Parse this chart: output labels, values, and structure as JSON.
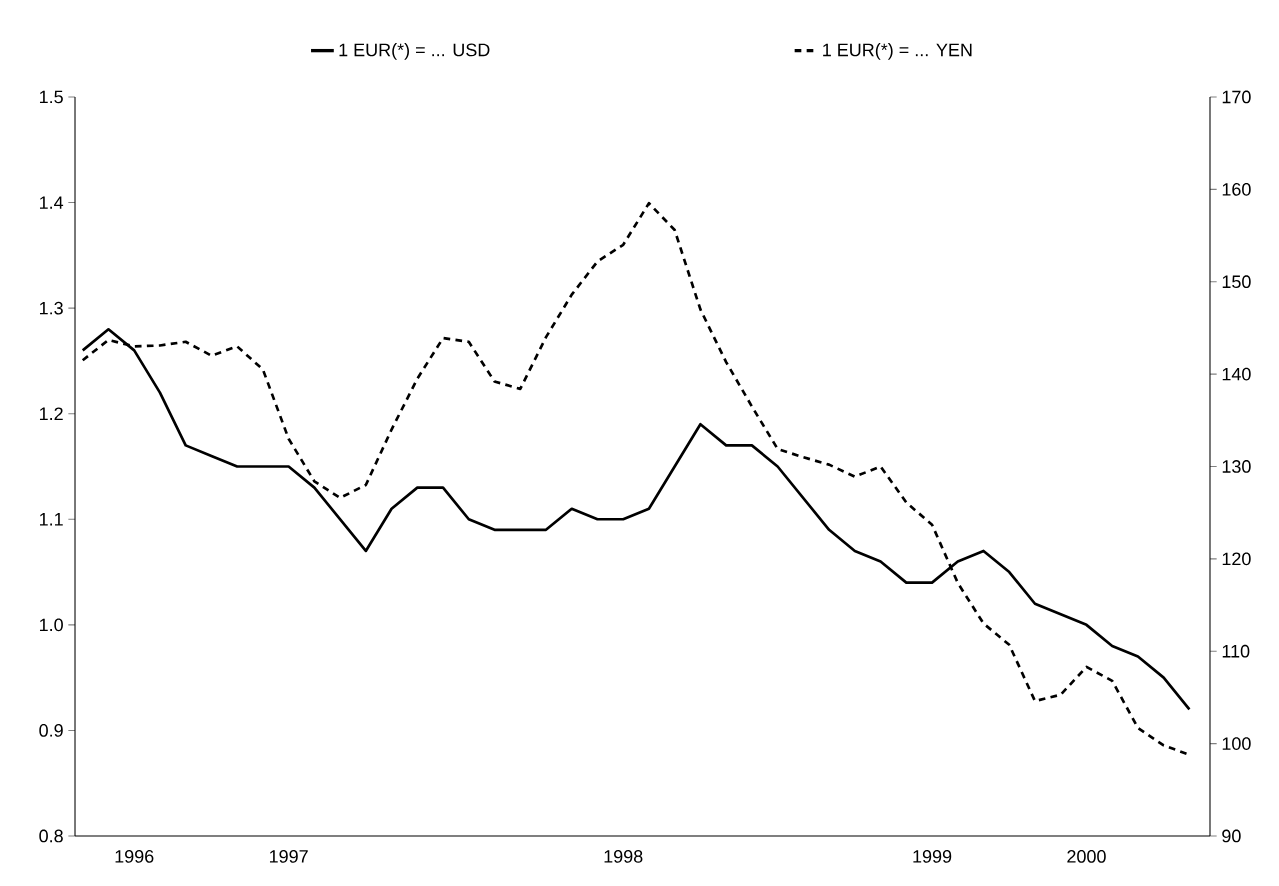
{
  "chart_data": {
    "type": "line",
    "categories": [
      null,
      null,
      "1996",
      null,
      null,
      null,
      null,
      null,
      "1997",
      null,
      null,
      null,
      null,
      null,
      null,
      null,
      null,
      null,
      null,
      null,
      null,
      "1998",
      null,
      null,
      null,
      null,
      null,
      null,
      null,
      null,
      null,
      null,
      null,
      "1999",
      null,
      null,
      null,
      null,
      null,
      "2000",
      null,
      null,
      null,
      null
    ],
    "ylim": [
      0.8,
      1.5
    ],
    "y2lim": [
      90,
      170
    ],
    "yticks": [
      {
        "value": 0.8,
        "label": "0.8"
      },
      {
        "value": 0.9,
        "label": "0.9"
      },
      {
        "value": 1.0,
        "label": "1.0"
      },
      {
        "value": 1.1,
        "label": "1.1"
      },
      {
        "value": 1.2,
        "label": "1.2"
      },
      {
        "value": 1.3,
        "label": "1.3"
      },
      {
        "value": 1.4,
        "label": "1.4"
      },
      {
        "value": 1.5,
        "label": "1.5"
      }
    ],
    "y2ticks": [
      90,
      100,
      110,
      120,
      130,
      140,
      150,
      160,
      170
    ],
    "legend": "top",
    "series": [
      {
        "name": "1 EUR(*) = ... USD",
        "color": "#000000",
        "line_style": "solid",
        "axis": "y",
        "values": [
          1.26,
          1.28,
          1.26,
          1.22,
          1.17,
          1.16,
          1.15,
          1.15,
          1.15,
          1.13,
          1.1,
          1.07,
          1.11,
          1.13,
          1.13,
          1.1,
          1.09,
          1.09,
          1.09,
          1.11,
          1.1,
          1.1,
          1.11,
          1.15,
          1.19,
          1.17,
          1.17,
          1.15,
          1.12,
          1.09,
          1.07,
          1.06,
          1.04,
          1.04,
          1.06,
          1.07,
          1.05,
          1.02,
          1.01,
          1.0,
          0.98,
          0.97,
          0.95,
          0.92
        ]
      },
      {
        "name": "1 EUR(*) = ... YEN",
        "color": "#000000",
        "line_style": "dashed",
        "axis": "y2",
        "values": [
          141.5,
          143.7,
          143,
          143.1,
          143.5,
          142,
          143,
          140.5,
          133,
          128.4,
          126.6,
          128,
          134,
          139.5,
          143.9,
          143.5,
          139.2,
          138.4,
          144,
          148.6,
          152.2,
          154,
          158.5,
          155.6,
          147,
          141.3,
          136.5,
          131.9,
          131,
          130.2,
          128.9,
          130,
          126.1,
          123.7,
          117.4,
          113,
          110.7,
          104.6,
          105.3,
          108.3,
          106.8,
          101.7,
          99.8,
          98.8
        ]
      }
    ]
  }
}
